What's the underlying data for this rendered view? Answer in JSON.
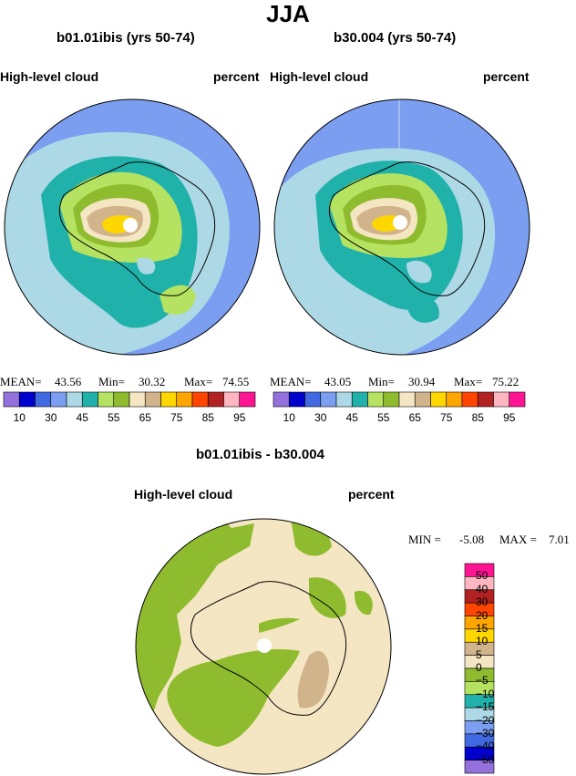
{
  "page_title": "JJA",
  "panels": [
    {
      "title": "b01.01ibis (yrs 50-74)",
      "variable": "High-level cloud",
      "units": "percent",
      "stats": {
        "mean_label": "MEAN=",
        "mean": "43.56",
        "min_label": "Min=",
        "min": "30.32",
        "max_label": "Max=",
        "max": "74.55"
      }
    },
    {
      "title": "b30.004 (yrs 50-74)",
      "variable": "High-level cloud",
      "units": "percent",
      "stats": {
        "mean_label": "MEAN=",
        "mean": "43.05",
        "min_label": "Min=",
        "min": "30.94",
        "max_label": "Max=",
        "max": "75.22"
      }
    }
  ],
  "diff_panel": {
    "title": "b01.01ibis - b30.004",
    "variable": "High-level cloud",
    "units": "percent",
    "stats": {
      "min_label": "MIN =",
      "min": "-5.08",
      "max_label": "MAX =",
      "max": "7.01"
    }
  },
  "colorbar_main": {
    "colors": [
      "#9370db",
      "#0000cd",
      "#4169e1",
      "#7b9ef0",
      "#add8e6",
      "#20b2aa",
      "#b5e361",
      "#8fbc2f",
      "#f5e6c3",
      "#d2b48c",
      "#ffd700",
      "#ffa500",
      "#ff4500",
      "#b22222",
      "#ffb6c1",
      "#ff1493"
    ],
    "labels": [
      "10",
      "30",
      "45",
      "55",
      "65",
      "75",
      "85",
      "95"
    ]
  },
  "colorbar_diff": {
    "colors": [
      "#ff1493",
      "#ffb6c1",
      "#b22222",
      "#ff4500",
      "#ffa500",
      "#ffd700",
      "#d2b48c",
      "#f5e6c3",
      "#8fbc2f",
      "#b5e361",
      "#20b2aa",
      "#add8e6",
      "#7b9ef0",
      "#4169e1",
      "#0000cd",
      "#9370db"
    ],
    "labels": [
      "50",
      "40",
      "30",
      "20",
      "15",
      "10",
      "5",
      "0",
      "−5",
      "−10",
      "−15",
      "−20",
      "−30",
      "−40",
      "−50"
    ]
  }
}
